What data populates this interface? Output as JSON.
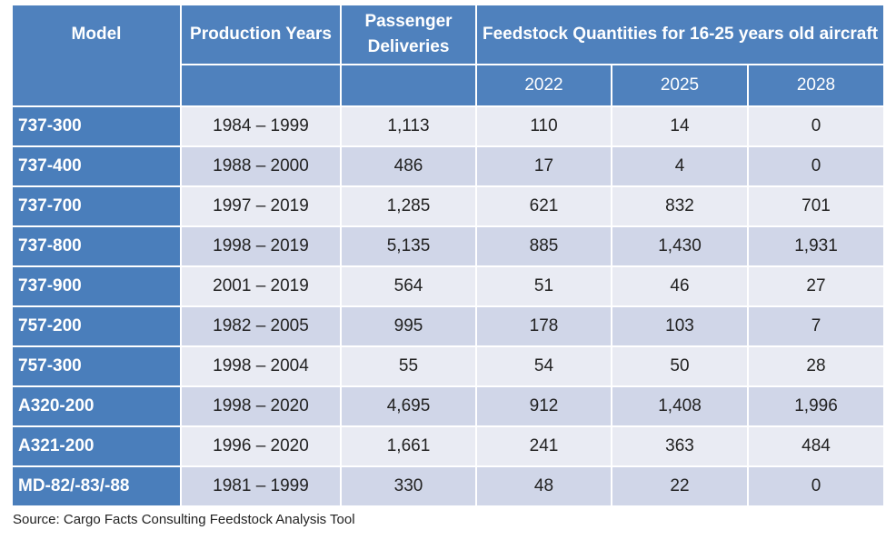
{
  "header": {
    "model": "Model",
    "production_years": "Production Years",
    "passenger_deliveries": "Passenger Deliveries",
    "feedstock": "Feedstock Quantities for 16-25 years old aircraft",
    "years": [
      "2022",
      "2025",
      "2028"
    ]
  },
  "rows": [
    {
      "model": "737-300",
      "years": "1984 – 1999",
      "deliveries": "1,113",
      "y2022": "110",
      "y2025": "14",
      "y2028": "0"
    },
    {
      "model": "737-400",
      "years": "1988 – 2000",
      "deliveries": "486",
      "y2022": "17",
      "y2025": "4",
      "y2028": "0"
    },
    {
      "model": "737-700",
      "years": "1997 – 2019",
      "deliveries": "1,285",
      "y2022": "621",
      "y2025": "832",
      "y2028": "701"
    },
    {
      "model": "737-800",
      "years": "1998 – 2019",
      "deliveries": "5,135",
      "y2022": "885",
      "y2025": "1,430",
      "y2028": "1,931"
    },
    {
      "model": "737-900",
      "years": "2001 – 2019",
      "deliveries": "564",
      "y2022": "51",
      "y2025": "46",
      "y2028": "27"
    },
    {
      "model": "757-200",
      "years": "1982 – 2005",
      "deliveries": "995",
      "y2022": "178",
      "y2025": "103",
      "y2028": "7"
    },
    {
      "model": "757-300",
      "years": "1998 – 2004",
      "deliveries": "55",
      "y2022": "54",
      "y2025": "50",
      "y2028": "28"
    },
    {
      "model": "A320-200",
      "years": "1998 – 2020",
      "deliveries": "4,695",
      "y2022": "912",
      "y2025": "1,408",
      "y2028": "1,996"
    },
    {
      "model": "A321-200",
      "years": "1996 – 2020",
      "deliveries": "1,661",
      "y2022": "241",
      "y2025": "363",
      "y2028": "484"
    },
    {
      "model": "MD-82/-83/-88",
      "years": "1981 – 1999",
      "deliveries": "330",
      "y2022": "48",
      "y2025": "22",
      "y2028": "0"
    }
  ],
  "source": "Source: Cargo Facts Consulting Feedstock Analysis Tool",
  "colors": {
    "header": "#4f81bd",
    "row_light": "#e9ebf3",
    "row_dark": "#d0d6e8"
  }
}
